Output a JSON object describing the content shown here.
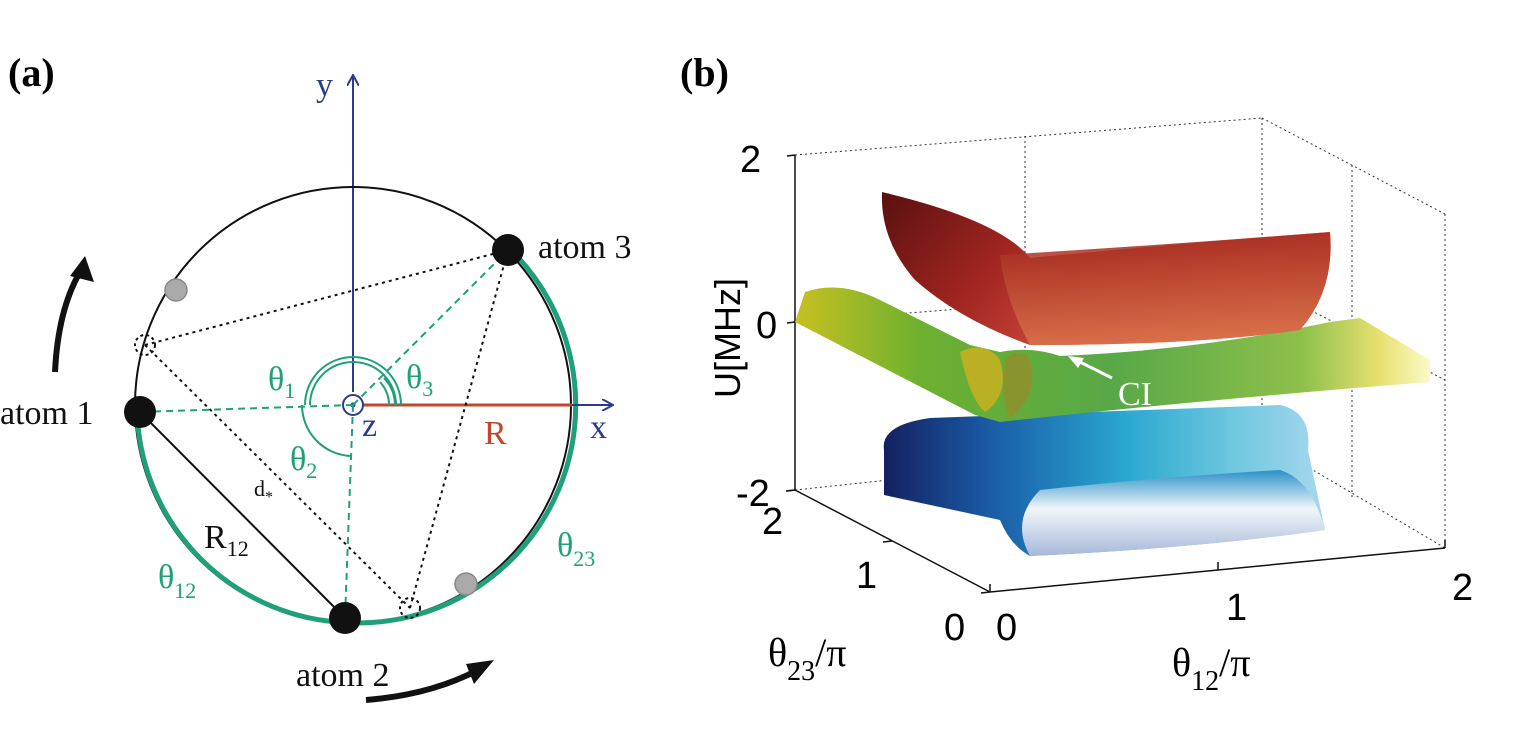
{
  "panel_a": {
    "label": "(a)",
    "axis_x": "x",
    "axis_y": "y",
    "axis_z": "z",
    "radius": "R",
    "atom1": "atom 1",
    "atom2": "atom 2",
    "atom3": "atom 3",
    "theta1": "θ",
    "theta1_sub": "1",
    "theta2": "θ",
    "theta2_sub": "2",
    "theta3": "θ",
    "theta3_sub": "3",
    "theta12": "θ",
    "theta12_sub": "12",
    "theta23": "θ",
    "theta23_sub": "23",
    "r12": "R",
    "r12_sub": "12",
    "dstar": "d",
    "dstar_sub": "*"
  },
  "panel_b": {
    "label": "(b)",
    "z_label": "U[MHz]",
    "z_ticks": [
      "2",
      "0",
      "-2"
    ],
    "x_label": "θ",
    "x_label_sub": "12",
    "x_label_suffix": "/π",
    "x_ticks": [
      "0",
      "1",
      "2"
    ],
    "y_label": "θ",
    "y_label_sub": "23",
    "y_label_suffix": "/π",
    "y_ticks": [
      "0",
      "1",
      "2"
    ],
    "annotation": "CI"
  },
  "colors": {
    "axis_blue": "#2c3c8c",
    "green": "#1fa07a",
    "radius_red": "#c0472c",
    "black": "#111111"
  }
}
